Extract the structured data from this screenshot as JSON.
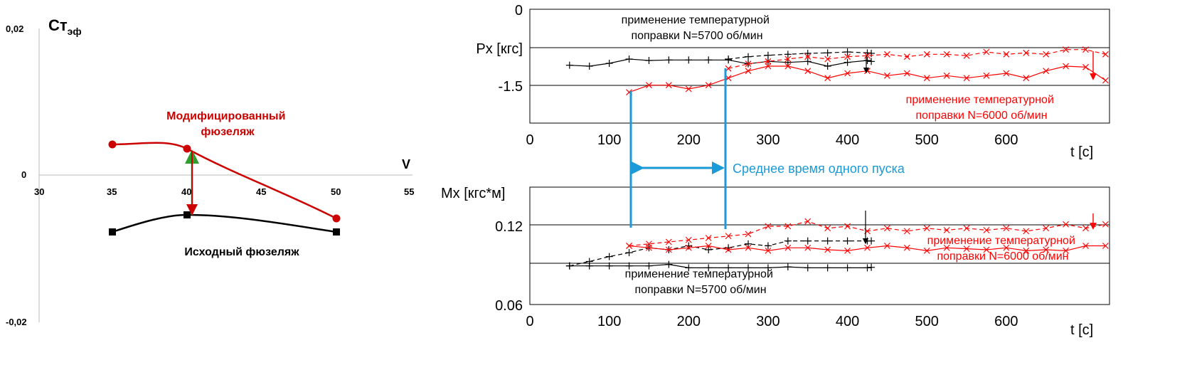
{
  "chart_data": [
    {
      "type": "line",
      "ylabel": "Ст",
      "ylabel_sub": "эф",
      "xlabel": "V",
      "x_ticks": [
        "30",
        "35",
        "40",
        "45",
        "50",
        "55"
      ],
      "y_ticks": [
        "0,02",
        "0",
        "-0,02"
      ],
      "xlim": [
        30,
        55
      ],
      "ylim": [
        -0.02,
        0.02
      ],
      "grid": false,
      "series": [
        {
          "name": "Модифицированный фюзеляж",
          "color": "#cc0000",
          "marker": "circle",
          "x": [
            35,
            40,
            50
          ],
          "y": [
            0.004,
            0.0034,
            -0.006
          ]
        },
        {
          "name": "Исходный фюзеляж",
          "color": "#000000",
          "marker": "square",
          "x": [
            35,
            40,
            50
          ],
          "y": [
            -0.008,
            -0.0056,
            -0.008
          ]
        }
      ],
      "annotation_colors": {
        "up": "#2e9e2e",
        "down": "#cc0000"
      }
    },
    {
      "type": "line",
      "ylabel": "Px [кгс]",
      "xlabel": "t [c]",
      "y_ticks": [
        "0",
        "-1.5"
      ],
      "x_ticks": [
        "0",
        "100",
        "200",
        "300",
        "400",
        "500",
        "600"
      ],
      "xlim": [
        0,
        730
      ],
      "ylim": [
        -2.4,
        0
      ],
      "grid": true,
      "annotations": [
        {
          "text_lines": [
            "применение температурной",
            "поправки N=5700 об/мин"
          ],
          "color": "#000000"
        },
        {
          "text_lines": [
            "применение температурной",
            "поправки N=6000 об/мин"
          ],
          "color": "#ff0000"
        }
      ],
      "series": [
        {
          "color": "#000000",
          "style": "solid",
          "marker": "+",
          "x": [
            50,
            75,
            100,
            125,
            150,
            175,
            200,
            225,
            250,
            275,
            300,
            325,
            350,
            375,
            400,
            425,
            430
          ],
          "y": [
            -1.18,
            -1.2,
            -1.14,
            -1.05,
            -1.08,
            -1.07,
            -1.07,
            -1.07,
            -1.07,
            -1.15,
            -1.1,
            -1.12,
            -1.1,
            -1.2,
            -1.12,
            -1.08,
            -1.1
          ]
        },
        {
          "color": "#000000",
          "style": "dashed",
          "marker": "+",
          "x": [
            250,
            275,
            300,
            325,
            350,
            375,
            400,
            425,
            430
          ],
          "y": [
            -1.05,
            -1.0,
            -0.97,
            -0.95,
            -0.93,
            -0.92,
            -0.9,
            -0.92,
            -0.93
          ]
        },
        {
          "color": "#ff0000",
          "style": "solid",
          "marker": "x",
          "x": [
            125,
            150,
            175,
            200,
            225,
            250,
            275,
            300,
            325,
            350,
            375,
            400,
            425,
            450,
            475,
            500,
            525,
            550,
            575,
            600,
            625,
            650,
            675,
            700,
            725
          ],
          "y": [
            -1.75,
            -1.6,
            -1.6,
            -1.68,
            -1.6,
            -1.45,
            -1.3,
            -1.2,
            -1.2,
            -1.3,
            -1.45,
            -1.35,
            -1.3,
            -1.4,
            -1.35,
            -1.45,
            -1.4,
            -1.45,
            -1.4,
            -1.35,
            -1.45,
            -1.3,
            -1.2,
            -1.22,
            -1.5
          ]
        },
        {
          "color": "#ff0000",
          "style": "dashed",
          "marker": "x",
          "x": [
            250,
            275,
            300,
            325,
            350,
            375,
            400,
            425,
            450,
            475,
            500,
            525,
            550,
            575,
            600,
            625,
            650,
            675,
            700,
            725
          ],
          "y": [
            -1.25,
            -1.15,
            -1.1,
            -1.05,
            -1.0,
            -1.05,
            -1.0,
            -0.98,
            -0.95,
            -1.0,
            -0.95,
            -0.95,
            -0.98,
            -0.9,
            -0.95,
            -0.92,
            -0.95,
            -0.85,
            -0.85,
            -0.95
          ]
        }
      ]
    },
    {
      "type": "line",
      "ylabel": "Mx [кгс*м]",
      "xlabel": "t [c]",
      "y_ticks": [
        "0.12",
        "0.06"
      ],
      "x_ticks": [
        "0",
        "100",
        "200",
        "300",
        "400",
        "500",
        "600"
      ],
      "xlim": [
        0,
        730
      ],
      "ylim": [
        0.06,
        0.18
      ],
      "grid": true,
      "annotations": [
        {
          "text_lines": [
            "применение температурной",
            "поправки N=5700 об/мин"
          ],
          "color": "#000000"
        },
        {
          "text_lines": [
            "применение температурной",
            "поправки N=6000 об/мин"
          ],
          "color": "#ff0000"
        }
      ],
      "series": [
        {
          "color": "#000000",
          "style": "solid",
          "marker": "+",
          "x": [
            50,
            75,
            100,
            125,
            150,
            175,
            200,
            225,
            250,
            275,
            300,
            325,
            350,
            375,
            400,
            425,
            430
          ],
          "y": [
            0.0995,
            0.0995,
            0.0995,
            0.0995,
            0.0995,
            0.101,
            0.0975,
            0.0975,
            0.0975,
            0.0975,
            0.0975,
            0.0985,
            0.0975,
            0.0975,
            0.0975,
            0.0975,
            0.098
          ]
        },
        {
          "color": "#000000",
          "style": "dashed",
          "marker": "+",
          "x": [
            50,
            75,
            100,
            125,
            150,
            175,
            200,
            225,
            250,
            275,
            300,
            325,
            350,
            375,
            400,
            425,
            430
          ],
          "y": [
            0.0995,
            0.104,
            0.109,
            0.113,
            0.118,
            0.116,
            0.12,
            0.116,
            0.118,
            0.122,
            0.12,
            0.125,
            0.125,
            0.125,
            0.125,
            0.125,
            0.125
          ]
        },
        {
          "color": "#ff0000",
          "style": "solid",
          "marker": "x",
          "x": [
            125,
            150,
            175,
            200,
            225,
            250,
            275,
            300,
            325,
            350,
            375,
            400,
            425,
            450,
            475,
            500,
            525,
            550,
            575,
            600,
            625,
            650,
            675,
            700,
            725
          ],
          "y": [
            0.12,
            0.118,
            0.116,
            0.118,
            0.12,
            0.116,
            0.118,
            0.115,
            0.118,
            0.118,
            0.116,
            0.115,
            0.118,
            0.12,
            0.118,
            0.115,
            0.118,
            0.117,
            0.116,
            0.118,
            0.115,
            0.116,
            0.115,
            0.12,
            0.12
          ]
        },
        {
          "color": "#ff0000",
          "style": "dashed",
          "marker": "x",
          "x": [
            125,
            150,
            175,
            200,
            225,
            250,
            275,
            300,
            325,
            350,
            375,
            400,
            425,
            450,
            475,
            500,
            525,
            550,
            575,
            600,
            625,
            650,
            675,
            700,
            725
          ],
          "y": [
            0.12,
            0.122,
            0.124,
            0.126,
            0.128,
            0.13,
            0.132,
            0.14,
            0.14,
            0.145,
            0.138,
            0.14,
            0.135,
            0.138,
            0.135,
            0.138,
            0.136,
            0.138,
            0.136,
            0.138,
            0.135,
            0.138,
            0.142,
            0.138,
            0.142
          ]
        }
      ]
    }
  ],
  "span_label": "Среднее время одного пуска",
  "span_color": "#1a9ad6"
}
